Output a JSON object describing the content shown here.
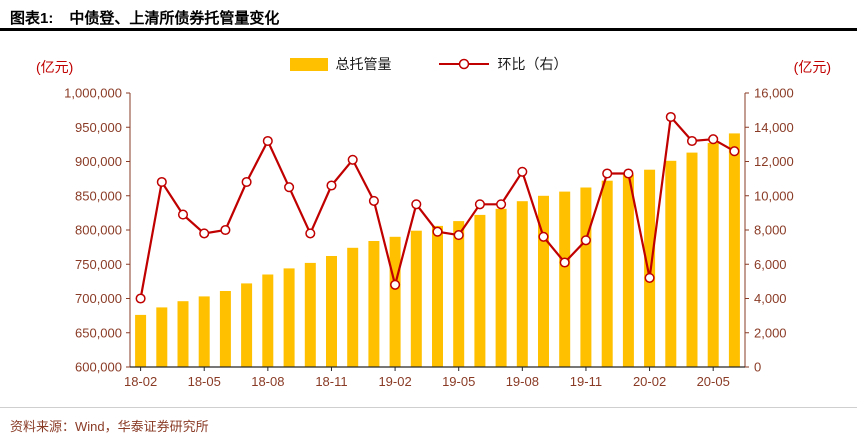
{
  "header": {
    "figure_label": "图表1:",
    "title": "中债登、上清所债券托管量变化"
  },
  "legend": {
    "bars": "总托管量",
    "line": "环比（右）"
  },
  "axes": {
    "left_unit": "(亿元)",
    "right_unit": "(亿元)",
    "left_ticks": [
      "1,000,000",
      "950,000",
      "900,000",
      "850,000",
      "800,000",
      "750,000",
      "700,000",
      "650,000",
      "600,000"
    ],
    "right_ticks": [
      "16,000",
      "14,000",
      "12,000",
      "10,000",
      "8,000",
      "6,000",
      "4,000",
      "2,000",
      "0"
    ],
    "x_ticks": [
      "18-02",
      "18-05",
      "18-08",
      "18-11",
      "19-02",
      "19-05",
      "19-08",
      "19-11",
      "20-02",
      "20-05"
    ]
  },
  "source": "资料来源：Wind，华泰证券研究所",
  "colors": {
    "bar": "#FFC000",
    "line": "#C00000",
    "marker_fill": "#FFFFFF",
    "axis_text": "#8a3b26",
    "axis_line": "#8a3b26",
    "bottom_axis": "#262626",
    "unit_text": "#c00000",
    "title_rule": "#000000"
  },
  "chart_data": {
    "type": "bar+line",
    "title": "中债登、上清所债券托管量变化",
    "months": [
      "18-02",
      "18-03",
      "18-04",
      "18-05",
      "18-06",
      "18-07",
      "18-08",
      "18-09",
      "18-10",
      "18-11",
      "18-12",
      "19-01",
      "19-02",
      "19-03",
      "19-04",
      "19-05",
      "19-06",
      "19-07",
      "19-08",
      "19-09",
      "19-10",
      "19-11",
      "19-12",
      "20-01",
      "20-02",
      "20-03",
      "20-04",
      "20-05",
      "20-06"
    ],
    "series": [
      {
        "name": "总托管量",
        "type": "bar",
        "axis": "left",
        "values": [
          676000,
          687000,
          696000,
          703000,
          711000,
          722000,
          735000,
          744000,
          752000,
          762000,
          774000,
          784000,
          790000,
          799000,
          806000,
          813000,
          822000,
          831000,
          842000,
          850000,
          856000,
          862000,
          872000,
          881000,
          888000,
          901000,
          913000,
          927000,
          941000
        ]
      },
      {
        "name": "环比（右）",
        "type": "line",
        "axis": "right",
        "values": [
          4000,
          10800,
          8900,
          7800,
          8000,
          10800,
          13200,
          10500,
          7800,
          10600,
          12100,
          9700,
          4800,
          9500,
          7900,
          7700,
          9500,
          9500,
          11400,
          7600,
          6100,
          7400,
          11300,
          11300,
          5200,
          14600,
          13200,
          13300,
          12600
        ]
      }
    ],
    "left_axis": {
      "label": "(亿元)",
      "min": 600000,
      "max": 1000000,
      "step": 50000
    },
    "right_axis": {
      "label": "(亿元)",
      "min": 0,
      "max": 16000,
      "step": 2000
    },
    "x_label_every": 3,
    "grid": false,
    "legend_position": "top-center"
  }
}
